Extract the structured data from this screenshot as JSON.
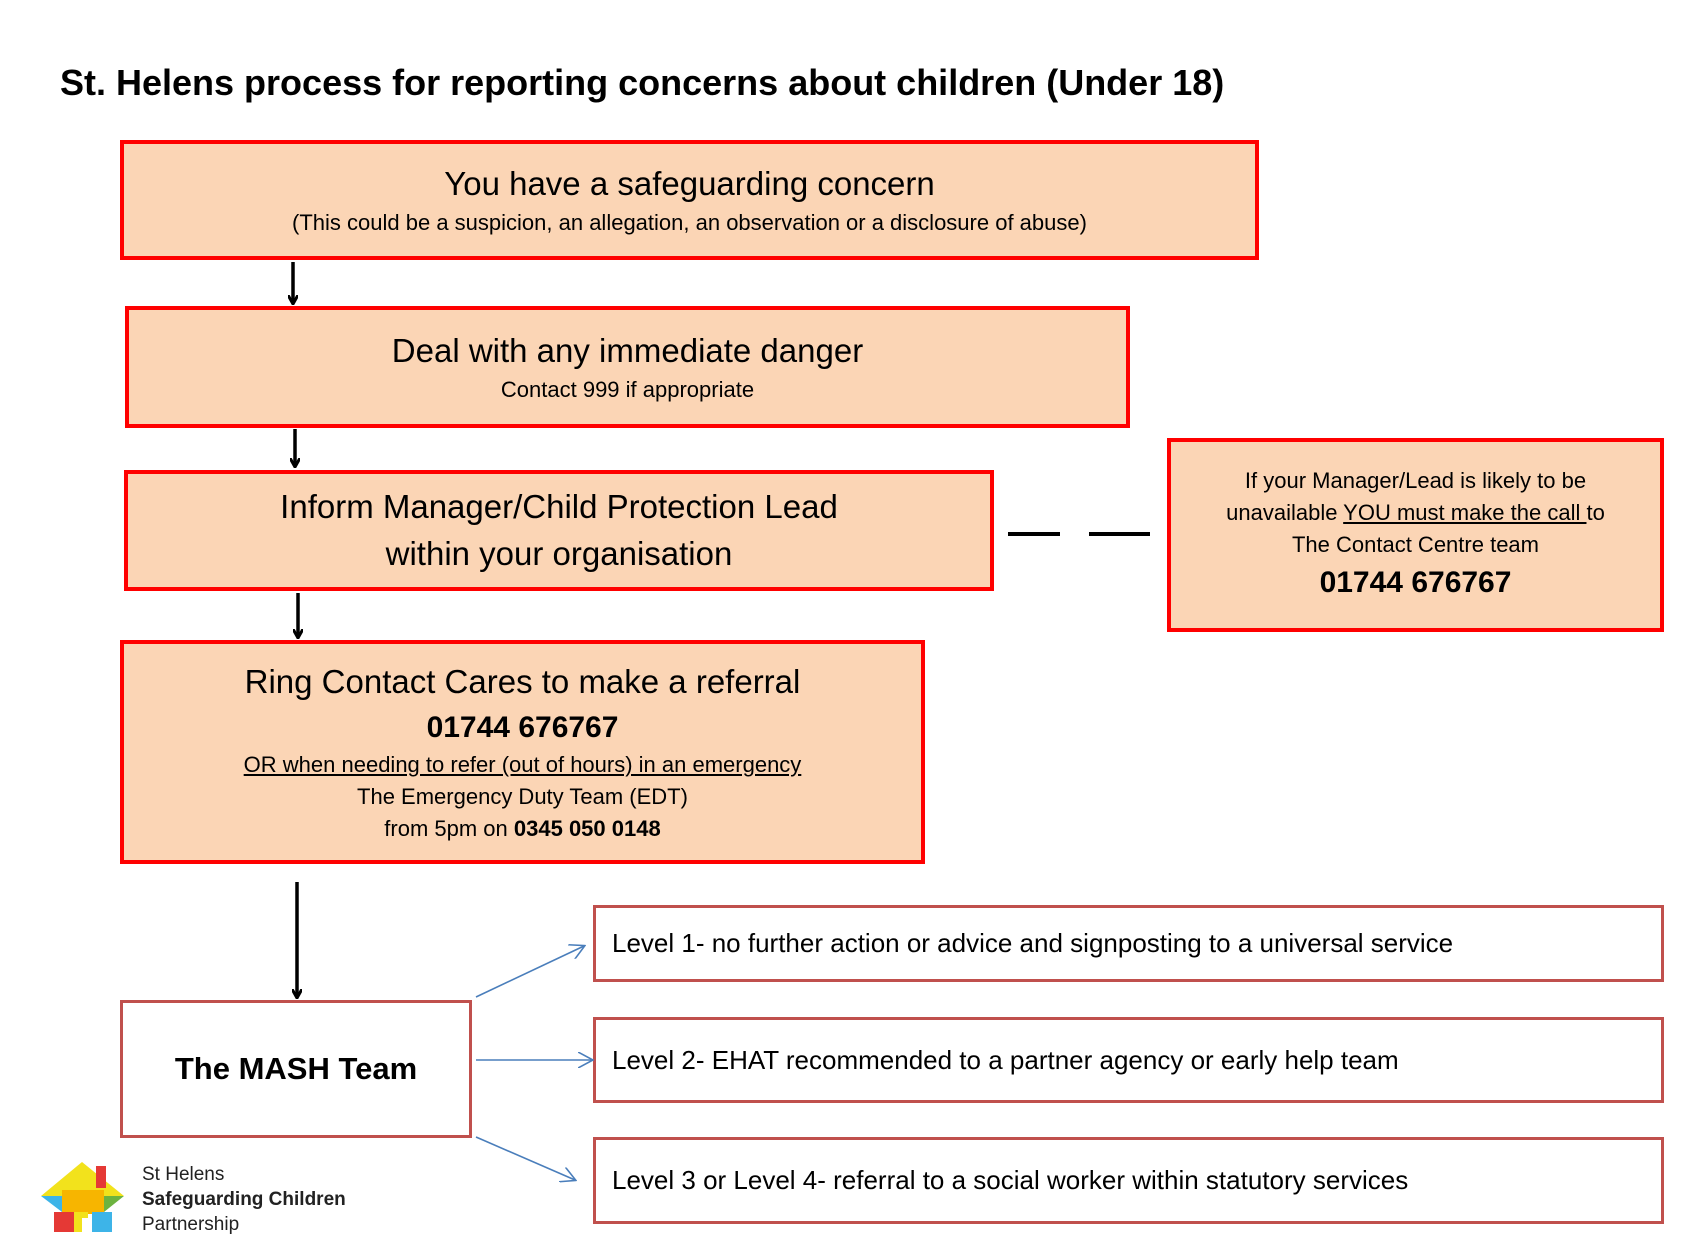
{
  "title": "St. Helens process for reporting concerns about children (Under 18)",
  "colors": {
    "box_fill": "#FBD5B5",
    "box_border": "#FF0000",
    "level_border": "#C0504D",
    "arrow_blue": "#4A7EBB"
  },
  "steps": [
    {
      "heading": "You have a safeguarding concern",
      "sub": "(This could be a suspicion, an allegation, an observation or a disclosure of abuse)"
    },
    {
      "heading": "Deal with any immediate danger",
      "sub": "Contact 999 if appropriate"
    },
    {
      "heading_line1": "Inform Manager/Child Protection Lead",
      "heading_line2": "within your organisation"
    },
    {
      "heading": "Ring Contact Cares to make a referral",
      "phone": "01744 676767",
      "alt": "OR when needing to refer (out of hours) in an emergency",
      "edt": "The Emergency Duty Team (EDT)",
      "from_prefix": "from 5pm on ",
      "edt_phone": "0345 050 0148"
    }
  ],
  "side_box": {
    "line1": "If your Manager/Lead is likely to be",
    "line2_prefix": "unavailable ",
    "line2_emph": "YOU must make the call ",
    "line2_suffix": "to",
    "line3": "The Contact Centre team",
    "phone": "01744 676767"
  },
  "mash": {
    "label": "The MASH Team"
  },
  "levels": [
    "Level 1- no further action or advice and signposting to a universal service",
    "Level 2- EHAT recommended to a partner agency or early help team",
    "Level 3 or Level 4- referral to a social worker within statutory services"
  ],
  "logo": {
    "line1": "St Helens",
    "line2": "Safeguarding Children",
    "line3": "Partnership"
  }
}
